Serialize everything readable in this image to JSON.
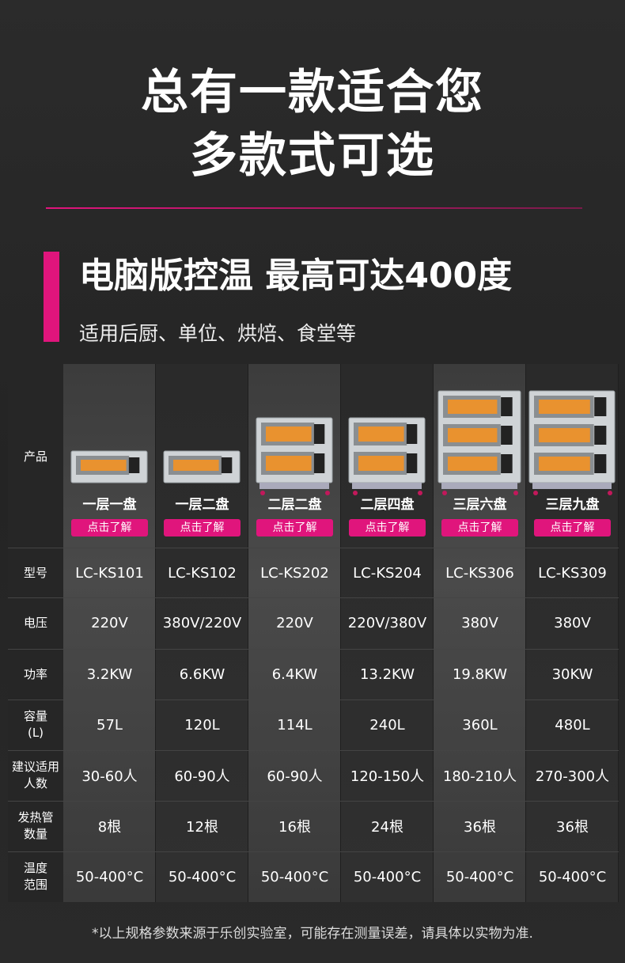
{
  "header": {
    "title_lines": [
      "总有一款适合您",
      "多款式可选"
    ]
  },
  "heading": "电脑版控温 最高可达400度",
  "subheading": "适用后厨、单位、烘焙、食堂等",
  "table": {
    "product_label": "产品",
    "button": "点击了解",
    "products": [
      "一层一盘",
      "一层二盘",
      "二层二盘",
      "二层四盘",
      "三层六盘",
      "三层九盘"
    ],
    "rows": [
      {
        "label": [
          "型号"
        ],
        "cells": [
          "LC-KS101",
          "LC-KS102",
          "LC-KS202",
          "LC-KS204",
          "LC-KS306",
          "LC-KS309"
        ]
      },
      {
        "label": [
          "电压"
        ],
        "cells": [
          "220V",
          "380V/220V",
          "220V",
          "220V/380V",
          "380V",
          "380V"
        ]
      },
      {
        "label": [
          "功率"
        ],
        "cells": [
          "3.2KW",
          "6.6KW",
          "6.4KW",
          "13.2KW",
          "19.8KW",
          "30KW"
        ]
      },
      {
        "label": [
          "容量",
          "(L)"
        ],
        "cells": [
          "57L",
          "120L",
          "114L",
          "240L",
          "360L",
          "480L"
        ]
      },
      {
        "label": [
          "建议适用",
          "人数"
        ],
        "cells": [
          "30-60人",
          "60-90人",
          "60-90人",
          "120-150人",
          "180-210人",
          "270-300人"
        ]
      },
      {
        "label": [
          "发热管",
          "数量"
        ],
        "cells": [
          "8根",
          "12根",
          "16根",
          "24根",
          "36根",
          "36根"
        ]
      },
      {
        "label": [
          "温度",
          "范围"
        ],
        "cells": [
          "50-400°C",
          "50-400°C",
          "50-400°C",
          "50-400°C",
          "50-400°C",
          "50-400°C"
        ]
      }
    ]
  },
  "footnote": "*以上规格参数来源于乐创实验室，可能存在测量误差，请具体以实物为准."
}
